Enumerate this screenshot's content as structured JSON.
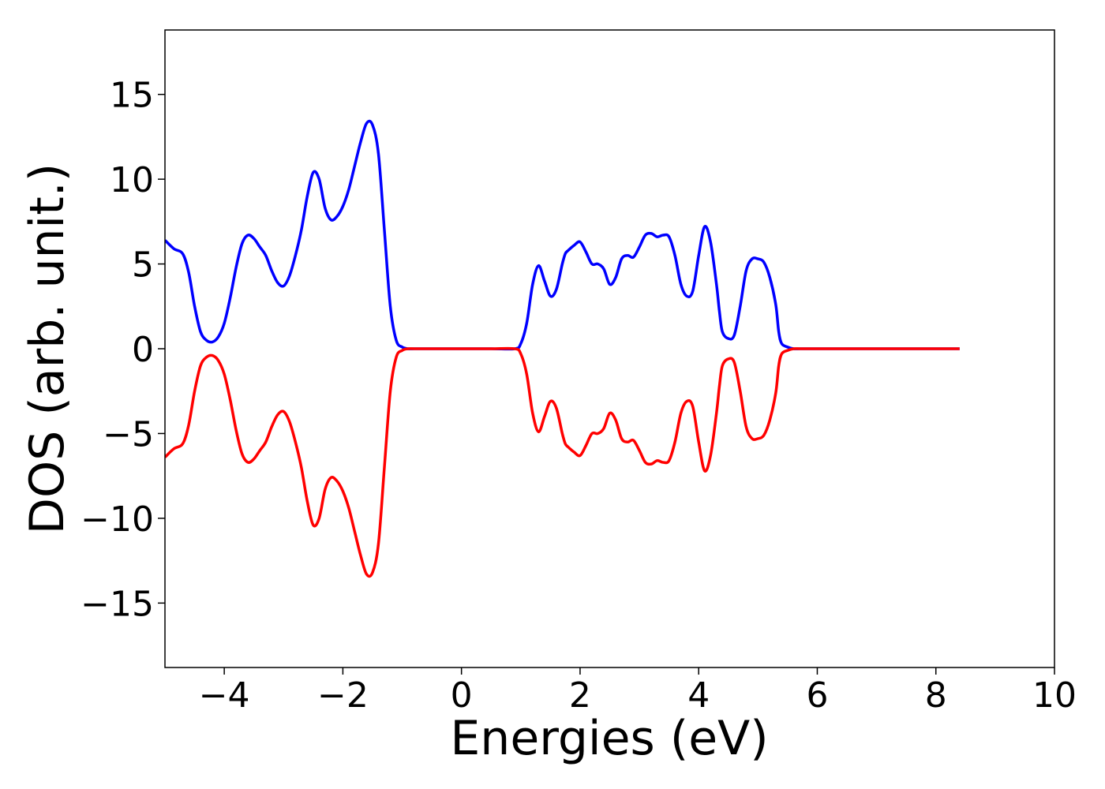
{
  "chart_data": {
    "type": "line",
    "title": "",
    "xlabel": "Energies (eV)",
    "ylabel": "DOS (arb. unit.)",
    "xlim": [
      -5,
      10
    ],
    "ylim": [
      -18.8,
      18.8
    ],
    "xticks": [
      -4,
      -2,
      0,
      2,
      4,
      6,
      8,
      10
    ],
    "yticks": [
      -15,
      -10,
      -5,
      0,
      5,
      10,
      15
    ],
    "xtick_labels": [
      "−4",
      "−2",
      "0",
      "2",
      "4",
      "6",
      "8",
      "10"
    ],
    "ytick_labels": [
      "−15",
      "−10",
      "−5",
      "0",
      "5",
      "10",
      "15"
    ],
    "grid": false,
    "legend": "none",
    "series": [
      {
        "color": "#0000ff",
        "x": [
          -5.0,
          -4.85,
          -4.7,
          -4.6,
          -4.5,
          -4.4,
          -4.3,
          -4.2,
          -4.1,
          -4.0,
          -3.9,
          -3.8,
          -3.7,
          -3.6,
          -3.5,
          -3.4,
          -3.3,
          -3.2,
          -3.1,
          -3.0,
          -2.9,
          -2.8,
          -2.7,
          -2.6,
          -2.5,
          -2.4,
          -2.3,
          -2.2,
          -2.1,
          -2.0,
          -1.9,
          -1.8,
          -1.7,
          -1.6,
          -1.5,
          -1.4,
          -1.3,
          -1.2,
          -1.1,
          -1.0,
          -0.9,
          -0.8,
          -0.7,
          -0.6,
          -0.5,
          0.0,
          0.5,
          0.9,
          1.0,
          1.1,
          1.2,
          1.3,
          1.4,
          1.5,
          1.6,
          1.7,
          1.75,
          1.8,
          1.9,
          2.0,
          2.1,
          2.2,
          2.3,
          2.4,
          2.5,
          2.6,
          2.7,
          2.8,
          2.9,
          3.0,
          3.1,
          3.2,
          3.3,
          3.4,
          3.5,
          3.6,
          3.7,
          3.8,
          3.9,
          4.0,
          4.1,
          4.2,
          4.3,
          4.35,
          4.4,
          4.5,
          4.6,
          4.7,
          4.8,
          4.9,
          5.0,
          5.1,
          5.2,
          5.3,
          5.35,
          5.4,
          5.5,
          5.6,
          5.7,
          5.8,
          5.9,
          6.0,
          6.1,
          6.2,
          6.3,
          6.4,
          6.5,
          6.6,
          6.7,
          6.8,
          7.0,
          8.0,
          8.4
        ],
        "y": [
          6.4,
          5.9,
          5.6,
          4.5,
          2.5,
          1.0,
          0.5,
          0.4,
          0.7,
          1.5,
          3.0,
          4.8,
          6.2,
          6.7,
          6.5,
          6.0,
          5.5,
          4.6,
          3.9,
          3.7,
          4.3,
          5.5,
          7.0,
          9.0,
          10.4,
          10.0,
          8.3,
          7.6,
          7.8,
          8.4,
          9.4,
          10.8,
          12.2,
          13.3,
          13.2,
          11.5,
          7.0,
          2.5,
          0.5,
          0.1,
          0.0,
          0.0,
          0.0,
          0.0,
          0.0,
          0.0,
          0.0,
          0.0,
          0.3,
          1.5,
          3.8,
          4.9,
          4.0,
          3.1,
          3.5,
          5.0,
          5.6,
          5.8,
          6.1,
          6.3,
          5.7,
          5.0,
          5.0,
          4.7,
          3.8,
          4.2,
          5.3,
          5.5,
          5.4,
          6.0,
          6.7,
          6.8,
          6.6,
          6.7,
          6.6,
          5.5,
          3.8,
          3.1,
          3.4,
          5.5,
          7.2,
          6.3,
          3.8,
          2.2,
          1.0,
          0.6,
          0.8,
          2.5,
          4.6,
          5.3,
          5.3,
          5.1,
          4.2,
          2.6,
          1.0,
          0.3,
          0.1,
          0.0,
          0.0,
          0.0,
          0.0,
          0.0,
          0.0,
          0.0,
          0.0,
          0.0,
          0.0,
          0.0,
          0.0,
          0.0,
          0.0,
          0.0,
          0.0
        ]
      },
      {
        "color": "#ff0000",
        "x": [
          -5.0,
          -4.85,
          -4.7,
          -4.6,
          -4.5,
          -4.4,
          -4.3,
          -4.2,
          -4.1,
          -4.0,
          -3.9,
          -3.8,
          -3.7,
          -3.6,
          -3.5,
          -3.4,
          -3.3,
          -3.2,
          -3.1,
          -3.0,
          -2.9,
          -2.8,
          -2.7,
          -2.6,
          -2.5,
          -2.4,
          -2.3,
          -2.2,
          -2.1,
          -2.0,
          -1.9,
          -1.8,
          -1.7,
          -1.6,
          -1.5,
          -1.4,
          -1.3,
          -1.2,
          -1.1,
          -1.0,
          -0.9,
          -0.8,
          -0.7,
          -0.6,
          -0.5,
          0.0,
          0.5,
          0.9,
          1.0,
          1.1,
          1.2,
          1.3,
          1.4,
          1.5,
          1.6,
          1.7,
          1.75,
          1.8,
          1.9,
          2.0,
          2.1,
          2.2,
          2.3,
          2.4,
          2.5,
          2.6,
          2.7,
          2.8,
          2.9,
          3.0,
          3.1,
          3.2,
          3.3,
          3.4,
          3.5,
          3.6,
          3.7,
          3.8,
          3.9,
          4.0,
          4.1,
          4.2,
          4.3,
          4.35,
          4.4,
          4.5,
          4.6,
          4.7,
          4.8,
          4.9,
          5.0,
          5.1,
          5.2,
          5.3,
          5.35,
          5.4,
          5.5,
          5.6,
          5.7,
          5.8,
          5.9,
          6.0,
          6.1,
          6.2,
          6.3,
          6.4,
          6.5,
          6.6,
          6.7,
          6.8,
          7.0,
          8.0,
          8.4
        ],
        "y": [
          -6.4,
          -5.9,
          -5.6,
          -4.5,
          -2.5,
          -1.0,
          -0.5,
          -0.4,
          -0.7,
          -1.5,
          -3.0,
          -4.8,
          -6.2,
          -6.7,
          -6.5,
          -6.0,
          -5.5,
          -4.6,
          -3.9,
          -3.7,
          -4.3,
          -5.5,
          -7.0,
          -9.0,
          -10.4,
          -10.0,
          -8.3,
          -7.6,
          -7.8,
          -8.4,
          -9.4,
          -10.8,
          -12.2,
          -13.3,
          -13.2,
          -11.5,
          -7.0,
          -2.5,
          -0.5,
          -0.1,
          0.0,
          0.0,
          0.0,
          0.0,
          0.0,
          0.0,
          0.0,
          0.0,
          -0.3,
          -1.5,
          -3.8,
          -4.9,
          -4.0,
          -3.1,
          -3.5,
          -5.0,
          -5.6,
          -5.8,
          -6.1,
          -6.3,
          -5.7,
          -5.0,
          -5.0,
          -4.7,
          -3.8,
          -4.2,
          -5.3,
          -5.5,
          -5.4,
          -6.0,
          -6.7,
          -6.8,
          -6.6,
          -6.7,
          -6.6,
          -5.5,
          -3.8,
          -3.1,
          -3.4,
          -5.5,
          -7.2,
          -6.3,
          -3.8,
          -2.2,
          -1.0,
          -0.6,
          -0.8,
          -2.5,
          -4.6,
          -5.3,
          -5.3,
          -5.1,
          -4.2,
          -2.6,
          -1.0,
          -0.3,
          -0.1,
          0.0,
          0.0,
          0.0,
          0.0,
          0.0,
          0.0,
          0.0,
          0.0,
          0.0,
          0.0,
          0.0,
          0.0,
          0.0,
          0.0,
          0.0,
          0.0
        ]
      }
    ]
  }
}
